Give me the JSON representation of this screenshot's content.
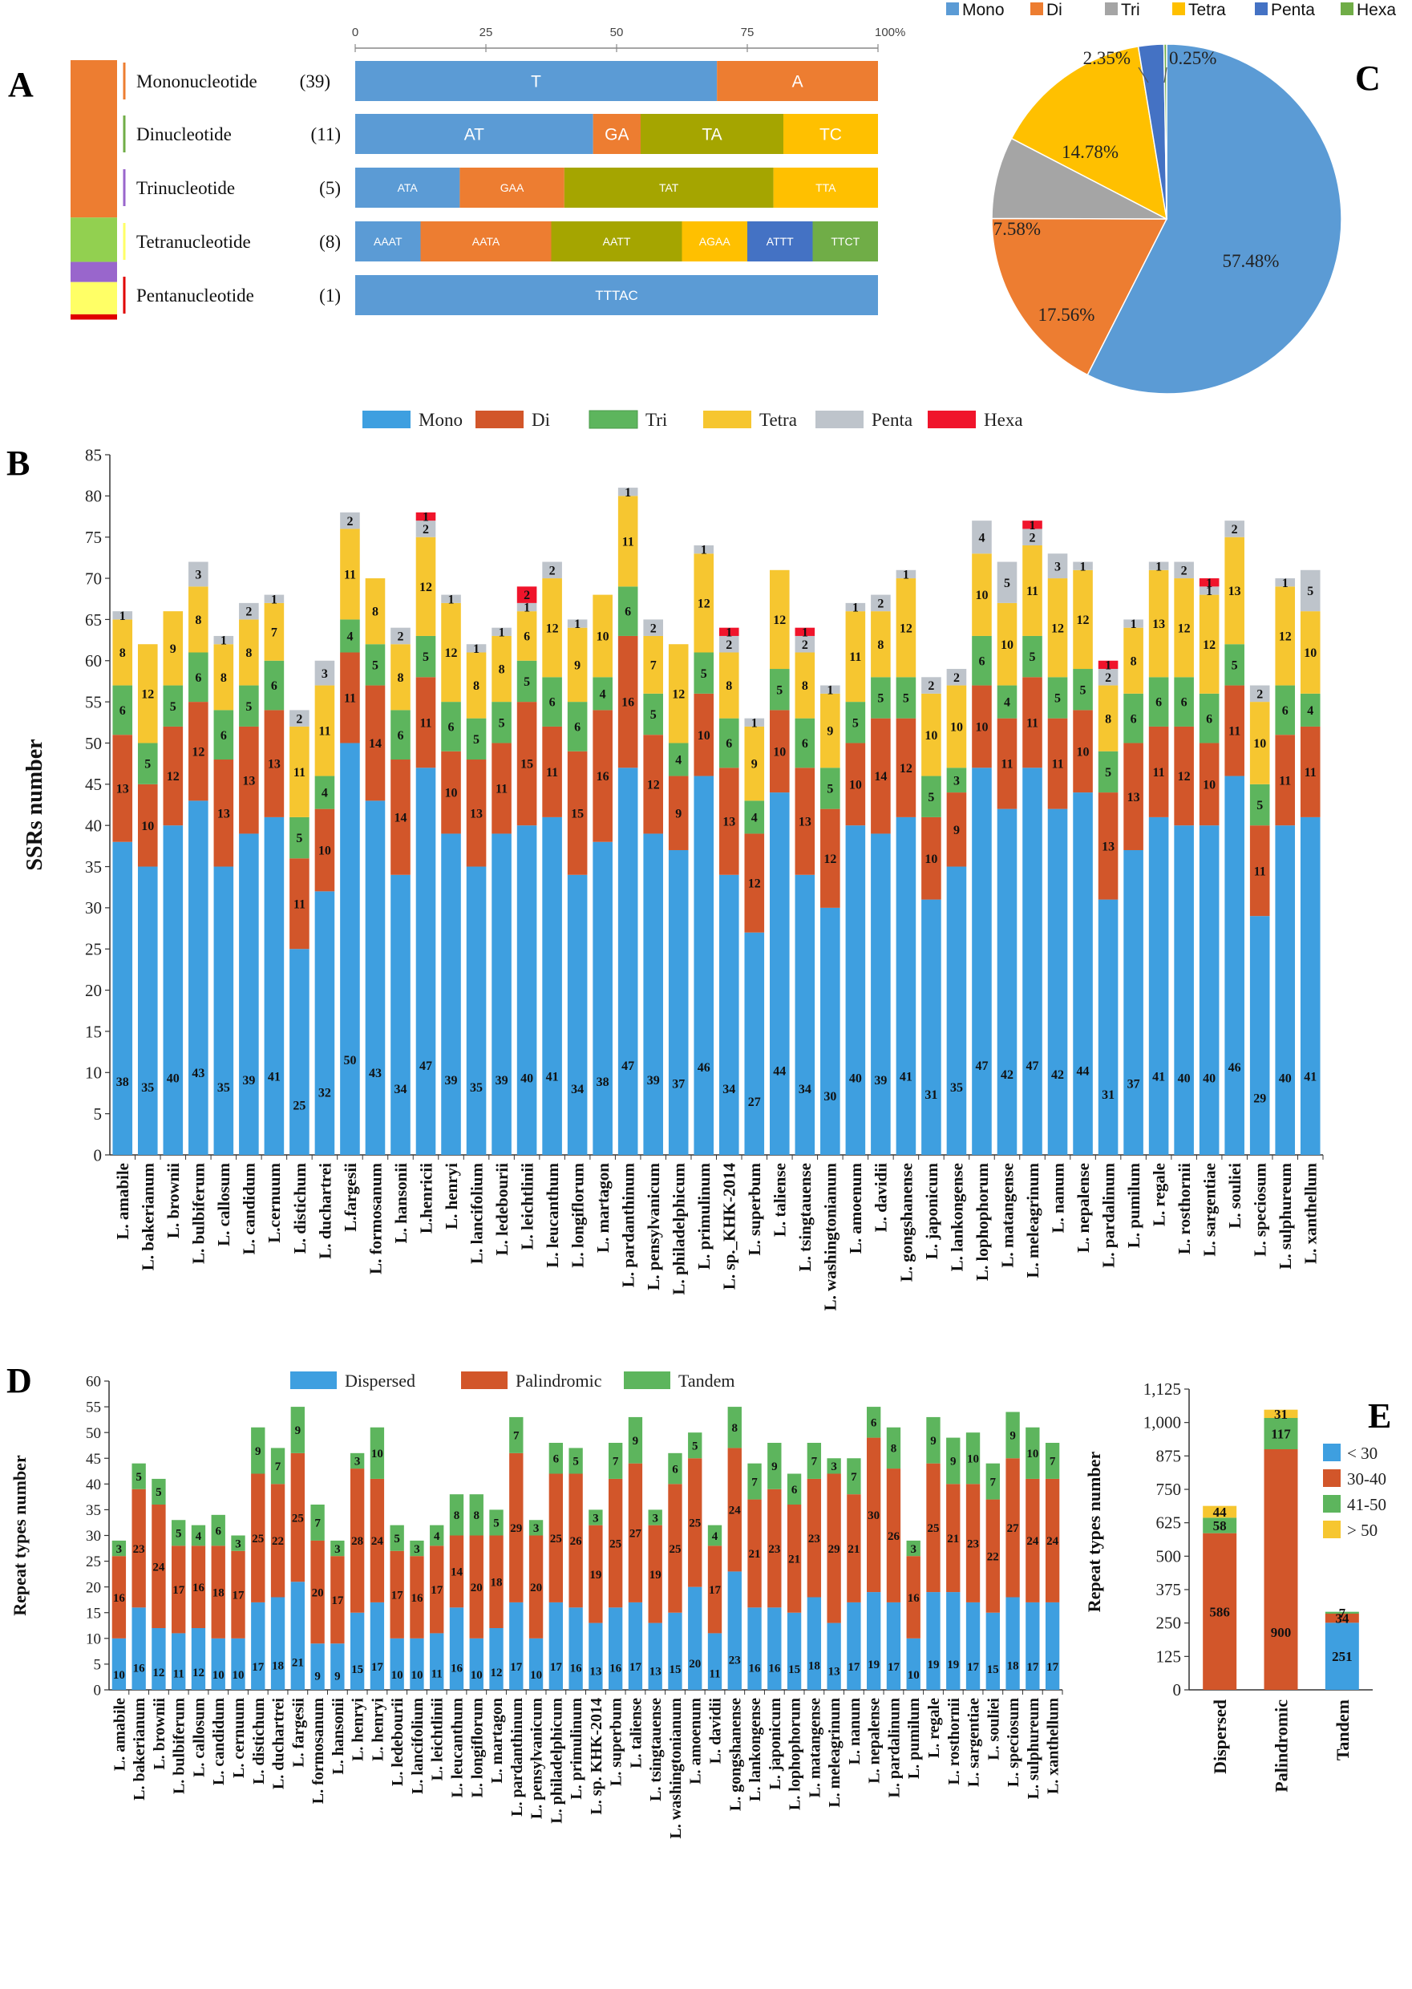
{
  "chart_data": [
    {
      "panel": "A",
      "type": "bar",
      "orientation": "horizontal",
      "stacked": true,
      "percent": true,
      "xaxis_ticks": [
        "0",
        "25",
        "50",
        "75",
        "100%"
      ],
      "xlim": [
        0,
        100
      ],
      "categories": [
        {
          "label": "Mononucleotide",
          "count": "(39)",
          "marker_color": "#ED7D31",
          "segments": [
            {
              "motif": "T",
              "value": 69.2,
              "color": "#5B9BD5"
            },
            {
              "motif": "A",
              "value": 30.8,
              "color": "#ED7D31"
            }
          ]
        },
        {
          "label": "Dinucleotide",
          "count": "(11)",
          "marker_color": "#70AD47",
          "segments": [
            {
              "motif": "AT",
              "value": 45.5,
              "color": "#5B9BD5"
            },
            {
              "motif": "GA",
              "value": 9.1,
              "color": "#ED7D31"
            },
            {
              "motif": "TA",
              "value": 27.3,
              "color": "#A5A500"
            },
            {
              "motif": "TC",
              "value": 18.1,
              "color": "#FFC000"
            }
          ]
        },
        {
          "label": "Trinucleotide",
          "count": "(5)",
          "marker_color": "#9966CC",
          "segments": [
            {
              "motif": "ATA",
              "value": 20,
              "color": "#5B9BD5"
            },
            {
              "motif": "GAA",
              "value": 20,
              "color": "#ED7D31"
            },
            {
              "motif": "TAT",
              "value": 40,
              "color": "#A5A500"
            },
            {
              "motif": "TTA",
              "value": 20,
              "color": "#FFC000"
            }
          ]
        },
        {
          "label": "Tetranucleotide",
          "count": "(8)",
          "marker_color": "#FFFF66",
          "segments": [
            {
              "motif": "AAAT",
              "value": 12.5,
              "color": "#5B9BD5"
            },
            {
              "motif": "AATA",
              "value": 25,
              "color": "#ED7D31"
            },
            {
              "motif": "AATT",
              "value": 25,
              "color": "#A5A500"
            },
            {
              "motif": "AGAA",
              "value": 12.5,
              "color": "#FFC000"
            },
            {
              "motif": "ATTT",
              "value": 12.5,
              "color": "#4472C4"
            },
            {
              "motif": "TTCT",
              "value": 12.5,
              "color": "#70AD47"
            }
          ]
        },
        {
          "label": "Pentanucleotide",
          "count": "(1)",
          "marker_color": "#E00000",
          "segments": [
            {
              "motif": "TTTAC",
              "value": 100,
              "color": "#5B9BD5"
            }
          ]
        }
      ],
      "left_stack": [
        {
          "value": 39,
          "color": "#ED7D31"
        },
        {
          "value": 11,
          "color": "#92D050"
        },
        {
          "value": 5,
          "color": "#9966CC"
        },
        {
          "value": 8,
          "color": "#FFFF66"
        },
        {
          "value": 1,
          "color": "#E00000"
        }
      ]
    },
    {
      "panel": "C",
      "type": "pie",
      "legend": [
        {
          "name": "Mono",
          "color": "#5B9BD5"
        },
        {
          "name": "Di",
          "color": "#ED7D31"
        },
        {
          "name": "Tri",
          "color": "#A5A5A5"
        },
        {
          "name": "Tetra",
          "color": "#FFC000"
        },
        {
          "name": "Penta",
          "color": "#4472C4"
        },
        {
          "name": "Hexa",
          "color": "#70AD47"
        }
      ],
      "slices": [
        {
          "name": "Mono",
          "value": 57.48,
          "label": "57.48%"
        },
        {
          "name": "Di",
          "value": 17.56,
          "label": "17.56%"
        },
        {
          "name": "Tri",
          "value": 7.58,
          "label": "7.58%"
        },
        {
          "name": "Tetra",
          "value": 14.78,
          "label": "14.78%"
        },
        {
          "name": "Penta",
          "value": 2.35,
          "label": "2.35%"
        },
        {
          "name": "Hexa",
          "value": 0.25,
          "label": "0.25%"
        }
      ]
    },
    {
      "panel": "B",
      "type": "bar",
      "stacked": true,
      "ylabel": "SSRs number",
      "ylim": [
        0,
        85
      ],
      "yticks": [
        0,
        5,
        10,
        15,
        20,
        25,
        30,
        35,
        40,
        45,
        50,
        55,
        60,
        65,
        70,
        75,
        80,
        85
      ],
      "series": [
        {
          "name": "Mono",
          "color": "#3E9FE0"
        },
        {
          "name": "Di",
          "color": "#D2562A"
        },
        {
          "name": "Tri",
          "color": "#5DB55D"
        },
        {
          "name": "Tetra",
          "color": "#F6C630"
        },
        {
          "name": "Penta",
          "color": "#BEC4CB"
        },
        {
          "name": "Hexa",
          "color": "#F0142B"
        }
      ],
      "categories": [
        "L. amabile",
        "L. bakerianum",
        "L. brownii",
        "L. bulbiferum",
        "L. callosum",
        "L. candidum",
        "L.cernuum",
        "L. distichum",
        "L. duchartrei",
        "L.fargesii",
        "L. formosanum",
        "L. hansonii",
        "L.henricii",
        "L. henryi",
        "L. lancifolium",
        "L. ledebourii",
        "L. leichtlinii",
        "L. leucanthum",
        "L. longiflorum",
        "L. martagon",
        "L. pardanthinum",
        "L. pensylvanicum",
        "L. philadelphicum",
        "L. primulinum",
        "L. sp._KHK-2014",
        "L. superbum",
        "L. taliense",
        "L. tsingtauense",
        "L. washingtonianum",
        "L. amoenum",
        "L. davidii",
        "L. gongshanense",
        "L. japonicum",
        "L. lankongense",
        "L. lophophorum",
        "L. matangense",
        "L. meleagrinum",
        "L. nanum",
        "L. nepalense",
        "L. pardalinum",
        "L. pumilum",
        "L. regale",
        "L. rosthornii",
        "L. sargentiae",
        "L. souliei",
        "L. speciosum",
        "L. sulphureum",
        "L. xanthellum"
      ],
      "values": [
        [
          38,
          13,
          6,
          8,
          1,
          0
        ],
        [
          35,
          10,
          5,
          12,
          0,
          0
        ],
        [
          40,
          12,
          5,
          9,
          0,
          0
        ],
        [
          43,
          12,
          6,
          8,
          3,
          0
        ],
        [
          35,
          13,
          6,
          8,
          1,
          0
        ],
        [
          39,
          13,
          5,
          8,
          2,
          0
        ],
        [
          41,
          13,
          6,
          7,
          1,
          0
        ],
        [
          25,
          11,
          5,
          11,
          2,
          0
        ],
        [
          32,
          10,
          4,
          11,
          3,
          0
        ],
        [
          50,
          11,
          4,
          11,
          2,
          0
        ],
        [
          43,
          14,
          5,
          8,
          0,
          0
        ],
        [
          34,
          14,
          6,
          8,
          2,
          0
        ],
        [
          47,
          11,
          5,
          12,
          2,
          1
        ],
        [
          39,
          10,
          6,
          12,
          1,
          0
        ],
        [
          35,
          13,
          5,
          8,
          1,
          0
        ],
        [
          39,
          11,
          5,
          8,
          1,
          0
        ],
        [
          40,
          15,
          5,
          6,
          1,
          2
        ],
        [
          41,
          11,
          6,
          12,
          2,
          0
        ],
        [
          34,
          15,
          6,
          9,
          1,
          0
        ],
        [
          38,
          16,
          4,
          10,
          0,
          0
        ],
        [
          47,
          16,
          6,
          11,
          1,
          0
        ],
        [
          39,
          12,
          5,
          7,
          2,
          0
        ],
        [
          37,
          9,
          4,
          12,
          0,
          0
        ],
        [
          46,
          10,
          5,
          12,
          1,
          0
        ],
        [
          34,
          13,
          6,
          8,
          2,
          1
        ],
        [
          27,
          12,
          4,
          9,
          1,
          0
        ],
        [
          44,
          10,
          5,
          12,
          0,
          0
        ],
        [
          34,
          13,
          6,
          8,
          2,
          1
        ],
        [
          30,
          12,
          5,
          9,
          1,
          0
        ],
        [
          40,
          10,
          5,
          11,
          1,
          0
        ],
        [
          39,
          14,
          5,
          8,
          2,
          0
        ],
        [
          41,
          12,
          5,
          12,
          1,
          0
        ],
        [
          31,
          10,
          5,
          10,
          2,
          0
        ],
        [
          35,
          9,
          3,
          10,
          2,
          0
        ],
        [
          47,
          10,
          6,
          10,
          4,
          0
        ],
        [
          42,
          11,
          4,
          10,
          5,
          0
        ],
        [
          47,
          11,
          5,
          11,
          2,
          1
        ],
        [
          42,
          11,
          5,
          12,
          3,
          0
        ],
        [
          44,
          10,
          5,
          12,
          1,
          0
        ],
        [
          31,
          13,
          5,
          8,
          2,
          1
        ],
        [
          37,
          13,
          6,
          8,
          1,
          0
        ],
        [
          41,
          11,
          6,
          13,
          1,
          0
        ],
        [
          40,
          12,
          6,
          12,
          2,
          0
        ],
        [
          40,
          10,
          6,
          12,
          1,
          1
        ],
        [
          46,
          11,
          5,
          13,
          2,
          0
        ],
        [
          29,
          11,
          5,
          10,
          2,
          0
        ],
        [
          40,
          11,
          6,
          12,
          1,
          0
        ],
        [
          41,
          11,
          4,
          10,
          5,
          0
        ]
      ]
    },
    {
      "panel": "D",
      "type": "bar",
      "stacked": true,
      "ylabel": "Repeat types number",
      "ylim": [
        0,
        60
      ],
      "yticks": [
        0,
        5,
        10,
        15,
        20,
        25,
        30,
        35,
        40,
        45,
        50,
        55,
        60
      ],
      "series": [
        {
          "name": "Dispersed",
          "color": "#3E9FE0"
        },
        {
          "name": "Palindromic",
          "color": "#D2562A"
        },
        {
          "name": "Tandem",
          "color": "#5DB55D"
        }
      ],
      "categories": [
        "L. amabile",
        "L. bakerianum",
        "L. brownii",
        "L. bulbiferum",
        "L. callosum",
        "L. candidum",
        "L. cernuum",
        "L. distichum",
        "L. duchartrei",
        "L. fargesii",
        "L. formosanum",
        "L. hansonii",
        "L. henryi",
        "L. henryi",
        "L. ledebourii",
        "L. lancifolium",
        "L. leichtlinii",
        "L. leucanthum",
        "L. longiflorum",
        "L. martagon",
        "L. pardanthinum",
        "L. pensylvanicum",
        "L. philadelphicum",
        "L. primulinum",
        "L. sp. KHK-2014",
        "L. superbum",
        "L. taliense",
        "L. tsingtauense",
        "L. washingtonianum",
        "L. amoenum",
        "L. davidii",
        "L. gongshanense",
        "L. lankongense",
        "L. japonicum",
        "L. lophophorum",
        "L. matangense",
        "L. meleagrinum",
        "L. nanum",
        "L. nepalense",
        "L. pardalinum",
        "L. pumilum",
        "L. regale",
        "L. rosthornii",
        "L. sargentiae",
        "L. souliei",
        "L. speciosum",
        "L. sulphureum",
        "L. xanthellum"
      ],
      "values": [
        [
          10,
          16,
          3
        ],
        [
          16,
          23,
          5
        ],
        [
          12,
          24,
          5
        ],
        [
          11,
          17,
          5
        ],
        [
          12,
          16,
          4
        ],
        [
          10,
          18,
          6
        ],
        [
          10,
          17,
          3
        ],
        [
          17,
          25,
          9
        ],
        [
          18,
          22,
          7
        ],
        [
          21,
          25,
          9
        ],
        [
          9,
          20,
          7
        ],
        [
          9,
          17,
          3
        ],
        [
          15,
          28,
          3
        ],
        [
          17,
          24,
          10
        ],
        [
          10,
          17,
          5
        ],
        [
          10,
          16,
          3
        ],
        [
          11,
          17,
          4
        ],
        [
          16,
          14,
          8
        ],
        [
          10,
          20,
          8
        ],
        [
          12,
          18,
          5
        ],
        [
          17,
          29,
          7
        ],
        [
          10,
          20,
          3
        ],
        [
          17,
          25,
          6
        ],
        [
          16,
          26,
          5
        ],
        [
          13,
          19,
          3
        ],
        [
          16,
          25,
          7
        ],
        [
          17,
          27,
          9
        ],
        [
          13,
          19,
          3
        ],
        [
          15,
          25,
          6
        ],
        [
          20,
          25,
          5
        ],
        [
          11,
          17,
          4
        ],
        [
          23,
          24,
          8
        ],
        [
          16,
          21,
          7
        ],
        [
          16,
          23,
          9
        ],
        [
          15,
          21,
          6
        ],
        [
          18,
          23,
          7
        ],
        [
          13,
          29,
          3
        ],
        [
          17,
          21,
          7
        ],
        [
          19,
          30,
          6
        ],
        [
          17,
          26,
          8
        ],
        [
          10,
          16,
          3
        ],
        [
          19,
          25,
          9
        ],
        [
          19,
          21,
          9
        ],
        [
          17,
          23,
          10
        ],
        [
          15,
          22,
          7
        ],
        [
          18,
          27,
          9
        ],
        [
          17,
          24,
          10
        ],
        [
          17,
          24,
          7
        ]
      ]
    },
    {
      "panel": "E",
      "type": "bar",
      "stacked": true,
      "ylabel": "Repeat types number",
      "ylim": [
        0,
        1125
      ],
      "yticks": [
        "0",
        "125",
        "250",
        "375",
        "500",
        "625",
        "750",
        "875",
        "1,000",
        "1,125"
      ],
      "series": [
        {
          "name": "< 30",
          "color": "#3E9FE0"
        },
        {
          "name": "30-40",
          "color": "#D2562A"
        },
        {
          "name": "41-50",
          "color": "#5DB55D"
        },
        {
          "name": "> 50",
          "color": "#F6C630"
        }
      ],
      "categories": [
        "Dispersed",
        "Palindromic",
        "Tandem"
      ],
      "values": [
        [
          0,
          586,
          58,
          44
        ],
        [
          0,
          900,
          117,
          31
        ],
        [
          251,
          34,
          7,
          0
        ]
      ]
    }
  ],
  "panel_letters": {
    "a": "A",
    "b": "B",
    "c": "C",
    "d": "D",
    "e": "E"
  }
}
